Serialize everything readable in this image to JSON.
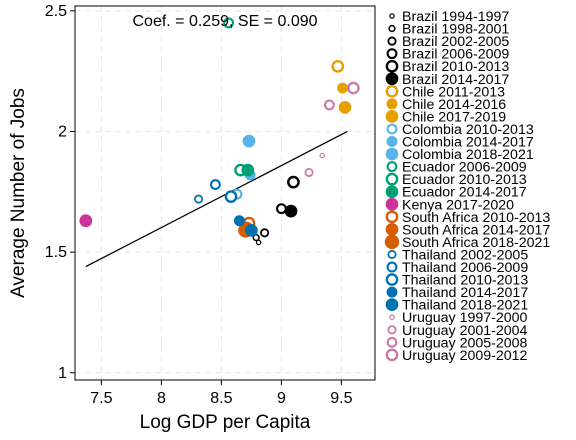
{
  "chart_data": {
    "type": "scatter",
    "annotation": "Coef. =  0.259, SE =  0.090",
    "xlabel": "Log GDP per Capita",
    "ylabel": "Average Number of Jobs",
    "xlim": [
      7.28,
      9.78
    ],
    "ylim": [
      0.97,
      2.52
    ],
    "xticks": [
      "7.5",
      "8",
      "8.5",
      "9",
      "9.5"
    ],
    "xtick_values": [
      7.5,
      8,
      8.5,
      9,
      9.5
    ],
    "yticks": [
      "1",
      "1.5",
      "2",
      "2.5"
    ],
    "ytick_values": [
      1,
      1.5,
      2,
      2.5
    ],
    "grid": true,
    "legend_position": "right",
    "fit_line": {
      "x": [
        7.37,
        9.55
      ],
      "y": [
        1.44,
        2.0
      ]
    },
    "series": [
      {
        "name": "Brazil 1994-1997",
        "color": "#000000",
        "style": "hollow",
        "size": 1,
        "x": [
          8.81
        ],
        "y": [
          1.54
        ]
      },
      {
        "name": "Brazil 1998-2001",
        "color": "#000000",
        "style": "hollow",
        "size": 2,
        "x": [
          8.79
        ],
        "y": [
          1.56
        ]
      },
      {
        "name": "Brazil 2002-2005",
        "color": "#000000",
        "style": "hollow",
        "size": 3,
        "x": [
          8.86
        ],
        "y": [
          1.58
        ]
      },
      {
        "name": "Brazil 2006-2009",
        "color": "#000000",
        "style": "hollow",
        "size": 4,
        "x": [
          9.0
        ],
        "y": [
          1.68
        ]
      },
      {
        "name": "Brazil 2010-2013",
        "color": "#000000",
        "style": "hollow",
        "size": 5,
        "x": [
          9.1
        ],
        "y": [
          1.79
        ]
      },
      {
        "name": "Brazil 2014-2017",
        "color": "#000000",
        "style": "solid",
        "size": 5,
        "x": [
          9.08
        ],
        "y": [
          1.67
        ]
      },
      {
        "name": "Chile 2011-2013",
        "color": "#e69f00",
        "style": "hollow",
        "size": 5,
        "x": [
          9.47
        ],
        "y": [
          2.27
        ]
      },
      {
        "name": "Chile 2014-2016",
        "color": "#e69f00",
        "style": "solid",
        "size": 4,
        "x": [
          9.51
        ],
        "y": [
          2.18
        ]
      },
      {
        "name": "Chile 2017-2019",
        "color": "#e69f00",
        "style": "solid",
        "size": 5,
        "x": [
          9.53
        ],
        "y": [
          2.1
        ]
      },
      {
        "name": "Colombia 2010-2013",
        "color": "#56b4e9",
        "style": "hollow",
        "size": 4,
        "x": [
          8.63
        ],
        "y": [
          1.74
        ]
      },
      {
        "name": "Colombia 2014-2017",
        "color": "#56b4e9",
        "style": "solid",
        "size": 4,
        "x": [
          8.74
        ],
        "y": [
          1.82
        ]
      },
      {
        "name": "Colombia 2018-2021",
        "color": "#56b4e9",
        "style": "solid",
        "size": 5,
        "x": [
          8.73
        ],
        "y": [
          1.96
        ]
      },
      {
        "name": "Ecuador 2006-2009",
        "color": "#009e73",
        "style": "hollow",
        "size": 4,
        "x": [
          8.56
        ],
        "y": [
          2.45
        ]
      },
      {
        "name": "Ecuador 2010-2013",
        "color": "#009e73",
        "style": "hollow",
        "size": 5,
        "x": [
          8.66
        ],
        "y": [
          1.84
        ]
      },
      {
        "name": "Ecuador 2014-2017",
        "color": "#009e73",
        "style": "solid",
        "size": 5,
        "x": [
          8.72
        ],
        "y": [
          1.84
        ]
      },
      {
        "name": "Kenya 2017-2020",
        "color": "#cc3399",
        "style": "solid",
        "size": 5,
        "x": [
          7.37
        ],
        "y": [
          1.63
        ]
      },
      {
        "name": "South Africa 2010-2013",
        "color": "#d55e00",
        "style": "hollow",
        "size": 5,
        "x": [
          8.73
        ],
        "y": [
          1.62
        ]
      },
      {
        "name": "South Africa 2014-2017",
        "color": "#d55e00",
        "style": "solid",
        "size": 5,
        "x": [
          8.71
        ],
        "y": [
          1.6
        ]
      },
      {
        "name": "South Africa 2018-2021",
        "color": "#d55e00",
        "style": "solid",
        "size": 6,
        "x": [
          8.7
        ],
        "y": [
          1.59
        ]
      },
      {
        "name": "Thailand 2002-2005",
        "color": "#0072b2",
        "style": "hollow",
        "size": 3,
        "x": [
          8.31
        ],
        "y": [
          1.72
        ]
      },
      {
        "name": "Thailand 2006-2009",
        "color": "#0072b2",
        "style": "hollow",
        "size": 4,
        "x": [
          8.45
        ],
        "y": [
          1.78
        ]
      },
      {
        "name": "Thailand 2010-2013",
        "color": "#0072b2",
        "style": "hollow",
        "size": 5,
        "x": [
          8.58
        ],
        "y": [
          1.73
        ]
      },
      {
        "name": "Thailand 2014-2017",
        "color": "#0072b2",
        "style": "solid",
        "size": 4,
        "x": [
          8.65
        ],
        "y": [
          1.63
        ]
      },
      {
        "name": "Thailand 2018-2021",
        "color": "#0072b2",
        "style": "solid",
        "size": 5,
        "x": [
          8.75
        ],
        "y": [
          1.59
        ]
      },
      {
        "name": "Uruguay 1997-2000",
        "color": "#cc79a7",
        "style": "hollow",
        "size": 1,
        "x": [
          9.34
        ],
        "y": [
          1.9
        ]
      },
      {
        "name": "Uruguay 2001-2004",
        "color": "#cc79a7",
        "style": "hollow",
        "size": 3,
        "x": [
          9.23
        ],
        "y": [
          1.83
        ]
      },
      {
        "name": "Uruguay 2005-2008",
        "color": "#cc79a7",
        "style": "hollow",
        "size": 4,
        "x": [
          9.4
        ],
        "y": [
          2.11
        ]
      },
      {
        "name": "Uruguay 2009-2012",
        "color": "#cc79a7",
        "style": "hollow",
        "size": 5,
        "x": [
          9.6
        ],
        "y": [
          2.18
        ]
      }
    ]
  }
}
